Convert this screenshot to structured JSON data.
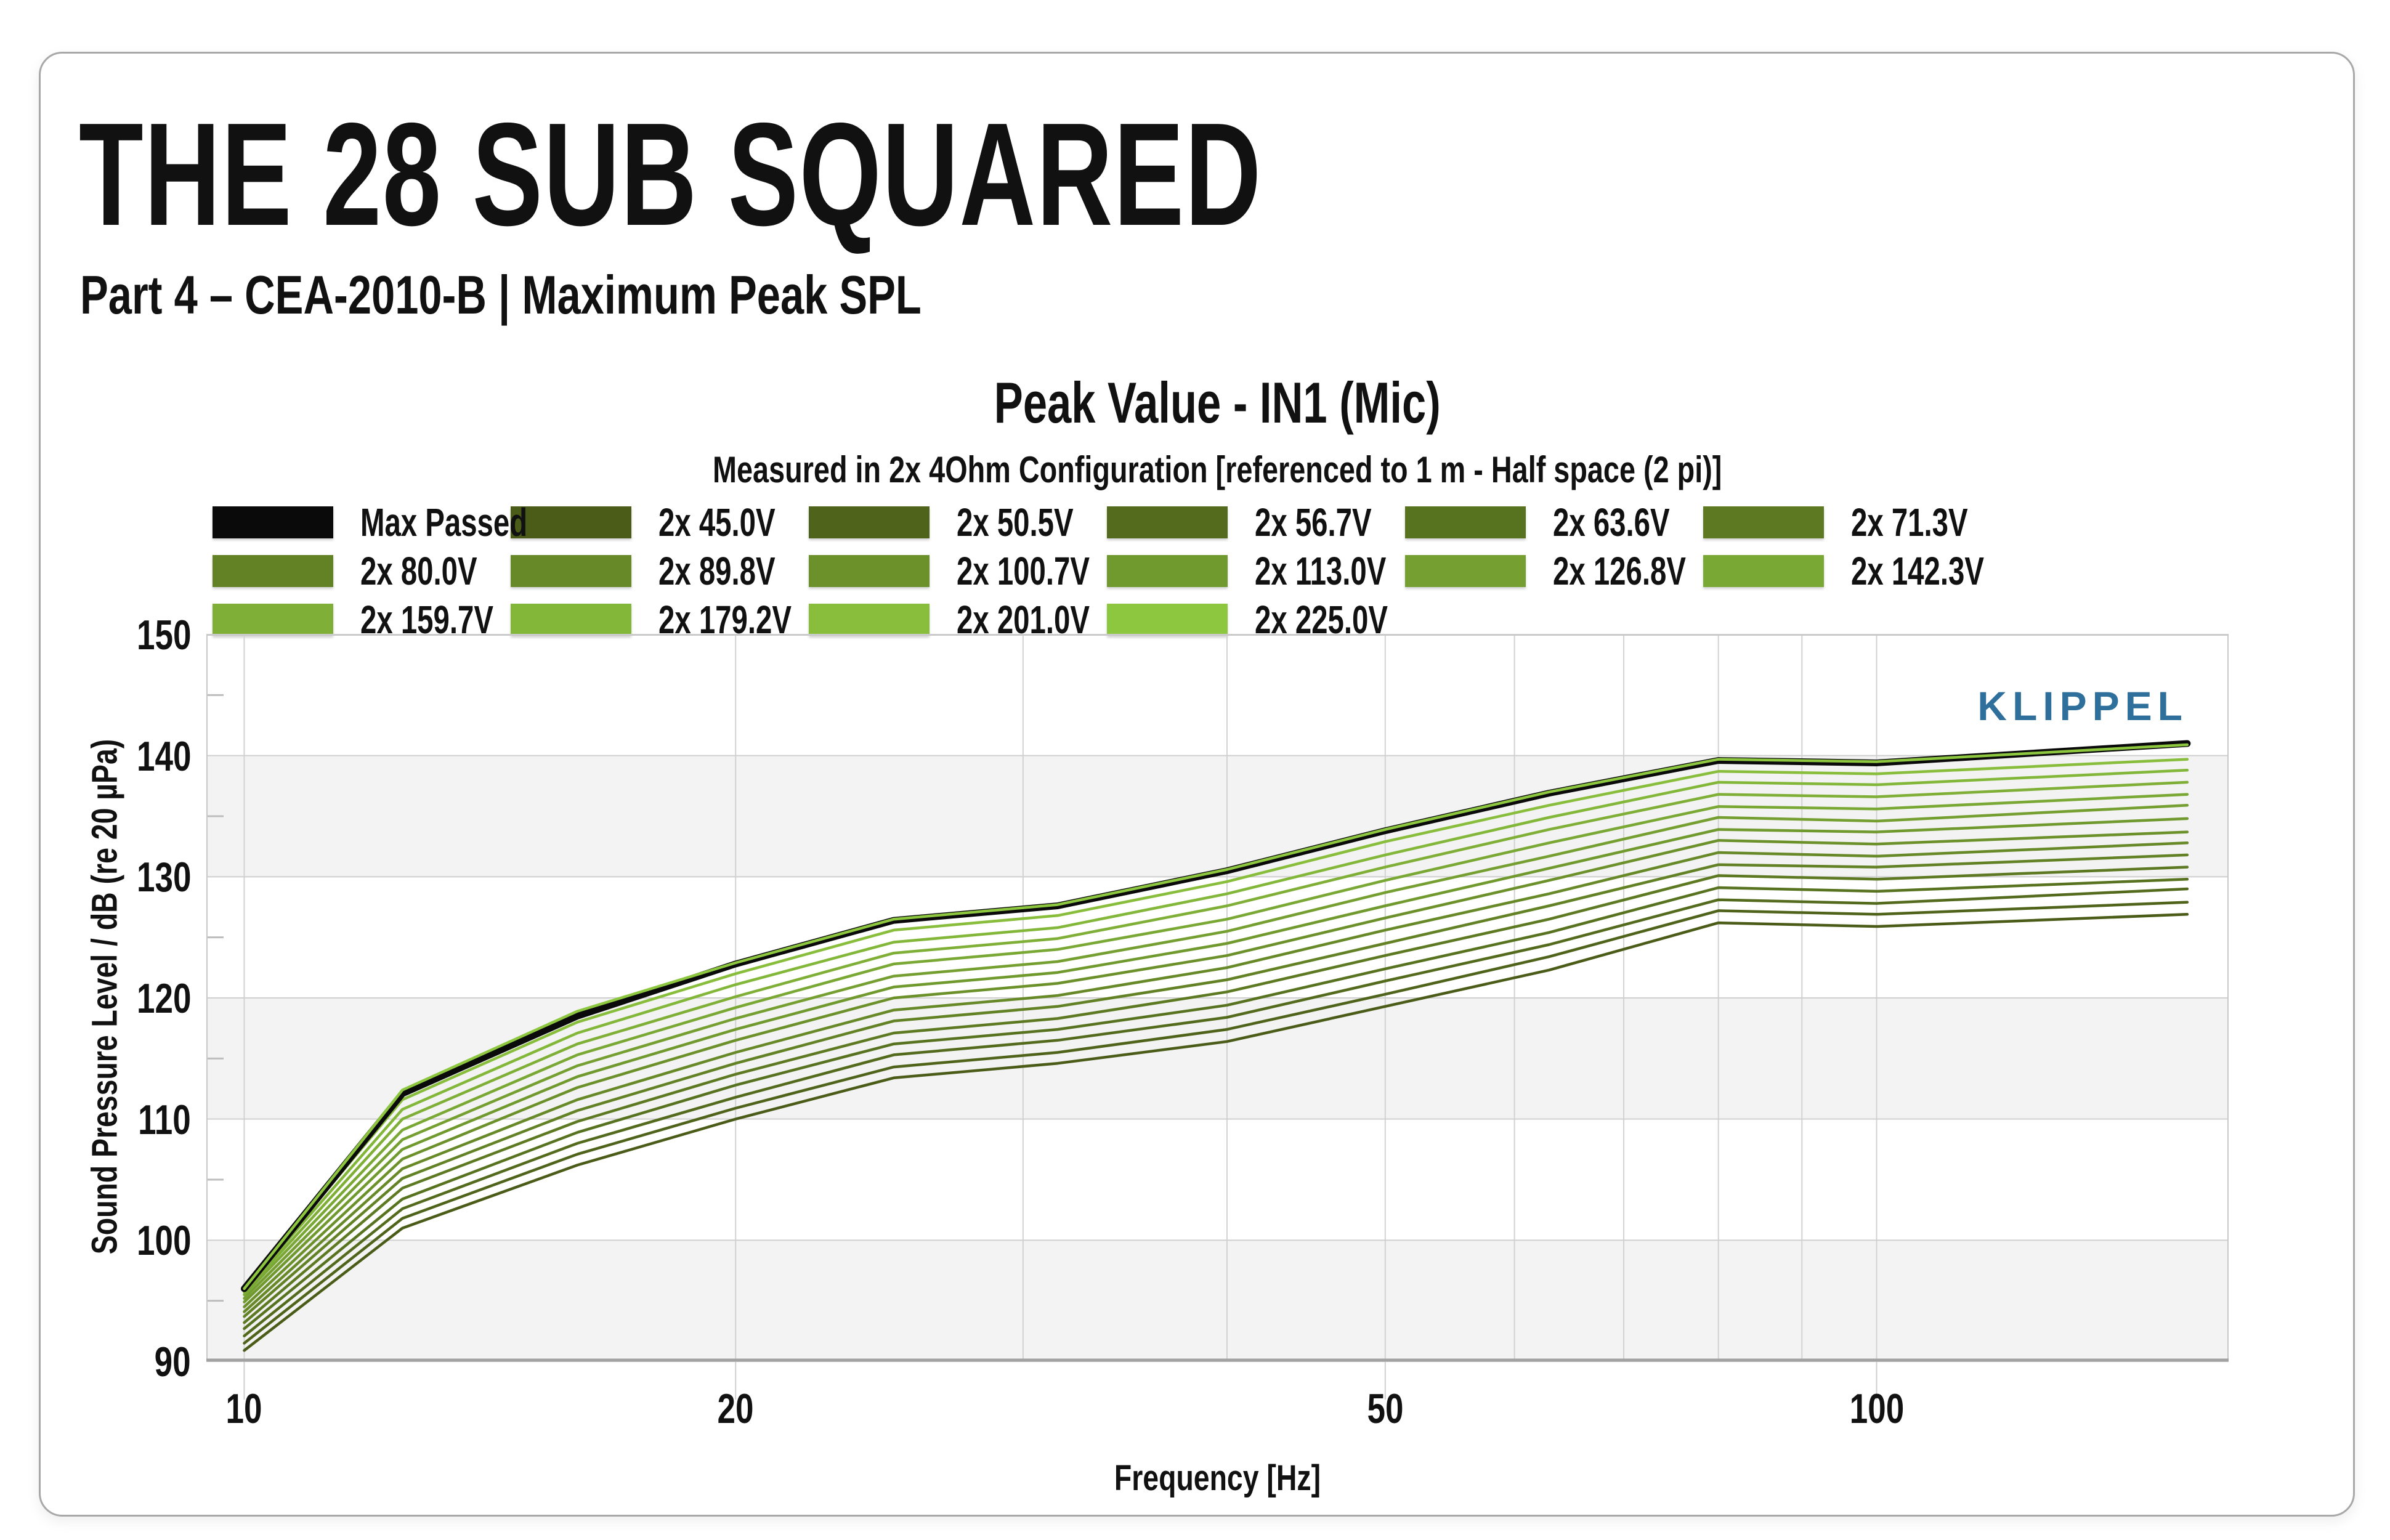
{
  "page": {
    "title": "THE 28 SUB SQUARED",
    "subtitle": "Part 4 – CEA-2010-B | Maximum Peak SPL"
  },
  "chart": {
    "title": "Peak Value - IN1 (Mic)",
    "subtitle": "Measured in 2x 4Ohm Configuration [referenced to 1 m - Half space (2 pi)]",
    "xlabel": "Frequency [Hz]",
    "ylabel": "Sound Pressure Level / dB (re 20 µPa)",
    "watermark": "KLIPPEL",
    "watermark_color": "#2f6f9b"
  },
  "legend": {
    "rows": [
      [
        {
          "label": "Max Passed",
          "color": "#0a0a0a"
        },
        {
          "label": "2x 45.0V",
          "color": "#4a5c17"
        },
        {
          "label": "2x 50.5V",
          "color": "#4f641a"
        },
        {
          "label": "2x 56.7V",
          "color": "#546b1d"
        },
        {
          "label": "2x 63.6V",
          "color": "#587320"
        },
        {
          "label": "2x 71.3V",
          "color": "#5d7a22"
        }
      ],
      [
        {
          "label": "2x 80.0V",
          "color": "#628225"
        },
        {
          "label": "2x 89.8V",
          "color": "#678928"
        },
        {
          "label": "2x 100.7V",
          "color": "#6c912b"
        },
        {
          "label": "2x 113.0V",
          "color": "#70992e"
        },
        {
          "label": "2x 126.8V",
          "color": "#75a031"
        },
        {
          "label": "2x 142.3V",
          "color": "#7aa834"
        }
      ],
      [
        {
          "label": "2x 159.7V",
          "color": "#7faf36"
        },
        {
          "label": "2x 179.2V",
          "color": "#83b739"
        },
        {
          "label": "2x 201.0V",
          "color": "#88be3c"
        },
        {
          "label": "2x 225.0V",
          "color": "#8dc63f"
        }
      ]
    ]
  },
  "chart_data": {
    "type": "line",
    "xscale": "log",
    "xlim": [
      9.48,
      164.3
    ],
    "ylim": [
      90,
      150
    ],
    "yticks": [
      90,
      100,
      110,
      120,
      130,
      140,
      150
    ],
    "minor_yticks": [
      95,
      105,
      115,
      125,
      135,
      145
    ],
    "xticks": [
      10,
      20,
      50,
      100
    ],
    "x_gridlines": [
      10,
      20,
      30,
      40,
      50,
      60,
      70,
      80,
      90,
      100
    ],
    "shaded_bands": [
      [
        140,
        130
      ],
      [
        120,
        110
      ],
      [
        100,
        90
      ]
    ],
    "band_color": "#f3f3f3",
    "grid_color": "#d2d2d2",
    "x": [
      10,
      12.5,
      16,
      20,
      25,
      31.5,
      40,
      50,
      63,
      80,
      100,
      155
    ],
    "series": [
      {
        "name": "2x 45.0V",
        "color": "#4a5c17",
        "values": [
          90.9,
          101.0,
          106.2,
          110.0,
          113.4,
          114.6,
          116.4,
          119.3,
          122.3,
          126.2,
          125.9,
          126.9
        ]
      },
      {
        "name": "2x 50.5V",
        "color": "#4f641a",
        "values": [
          91.5,
          101.8,
          107.1,
          110.9,
          114.3,
          115.5,
          117.4,
          120.3,
          123.4,
          127.2,
          126.9,
          127.9
        ]
      },
      {
        "name": "2x 56.7V",
        "color": "#546b1d",
        "values": [
          92.1,
          102.6,
          108.0,
          111.8,
          115.3,
          116.5,
          118.4,
          121.4,
          124.4,
          128.1,
          127.8,
          129.0
        ]
      },
      {
        "name": "2x 63.6V",
        "color": "#587320",
        "values": [
          92.7,
          103.4,
          108.9,
          112.8,
          116.2,
          117.4,
          119.4,
          122.4,
          125.4,
          129.1,
          128.8,
          129.8
        ]
      },
      {
        "name": "2x 71.3V",
        "color": "#5d7a22",
        "values": [
          93.2,
          104.3,
          109.8,
          113.7,
          117.1,
          118.3,
          120.5,
          123.5,
          126.5,
          130.1,
          129.8,
          130.8
        ]
      },
      {
        "name": "2x 80.0V",
        "color": "#628225",
        "values": [
          93.7,
          105.1,
          110.7,
          114.6,
          118.1,
          119.3,
          121.5,
          124.5,
          127.6,
          131.0,
          130.8,
          131.8
        ]
      },
      {
        "name": "2x 89.8V",
        "color": "#678928",
        "values": [
          94.1,
          105.9,
          111.6,
          115.5,
          119.0,
          120.2,
          122.5,
          125.6,
          128.6,
          132.0,
          131.7,
          132.8
        ]
      },
      {
        "name": "2x 100.7V",
        "color": "#6c912b",
        "values": [
          94.5,
          106.7,
          112.6,
          116.5,
          120.0,
          121.2,
          123.5,
          126.6,
          129.7,
          133.0,
          132.7,
          133.7
        ]
      },
      {
        "name": "2x 113.0V",
        "color": "#70992e",
        "values": [
          94.9,
          107.5,
          113.5,
          117.4,
          120.9,
          122.1,
          124.5,
          127.6,
          130.7,
          133.9,
          133.7,
          134.8
        ]
      },
      {
        "name": "2x 126.8V",
        "color": "#75a031",
        "values": [
          95.2,
          108.3,
          114.4,
          118.3,
          121.8,
          123.0,
          125.5,
          128.7,
          131.7,
          134.9,
          134.6,
          135.9
        ]
      },
      {
        "name": "2x 142.3V",
        "color": "#7aa834",
        "values": [
          95.5,
          109.1,
          115.3,
          119.2,
          122.8,
          124.0,
          126.5,
          129.7,
          132.8,
          135.8,
          135.6,
          136.8
        ]
      },
      {
        "name": "2x 159.7V",
        "color": "#7faf36",
        "values": [
          95.7,
          110.0,
          116.2,
          120.1,
          123.7,
          124.9,
          127.6,
          130.8,
          133.9,
          136.8,
          136.6,
          137.8
        ]
      },
      {
        "name": "2x 179.2V",
        "color": "#83b739",
        "values": [
          95.9,
          110.8,
          117.1,
          121.1,
          124.6,
          125.8,
          128.6,
          131.8,
          134.9,
          137.8,
          137.6,
          138.8
        ]
      },
      {
        "name": "2x 201.0V",
        "color": "#88be3c",
        "values": [
          96.0,
          111.6,
          118.0,
          122.0,
          125.6,
          126.8,
          129.6,
          132.9,
          135.9,
          138.7,
          138.5,
          139.7
        ]
      },
      {
        "name": "Max Passed",
        "color": "#0a0a0a",
        "width": 11,
        "values": [
          96.0,
          112.1,
          118.5,
          122.8,
          126.4,
          127.6,
          130.5,
          133.8,
          136.9,
          139.6,
          139.4,
          141.0
        ]
      },
      {
        "name": "2x 225.0V",
        "color": "#8dc63f",
        "values": [
          96.0,
          112.4,
          118.9,
          122.9,
          126.5,
          127.7,
          130.6,
          133.9,
          137.0,
          139.7,
          139.5,
          140.9
        ]
      }
    ]
  }
}
